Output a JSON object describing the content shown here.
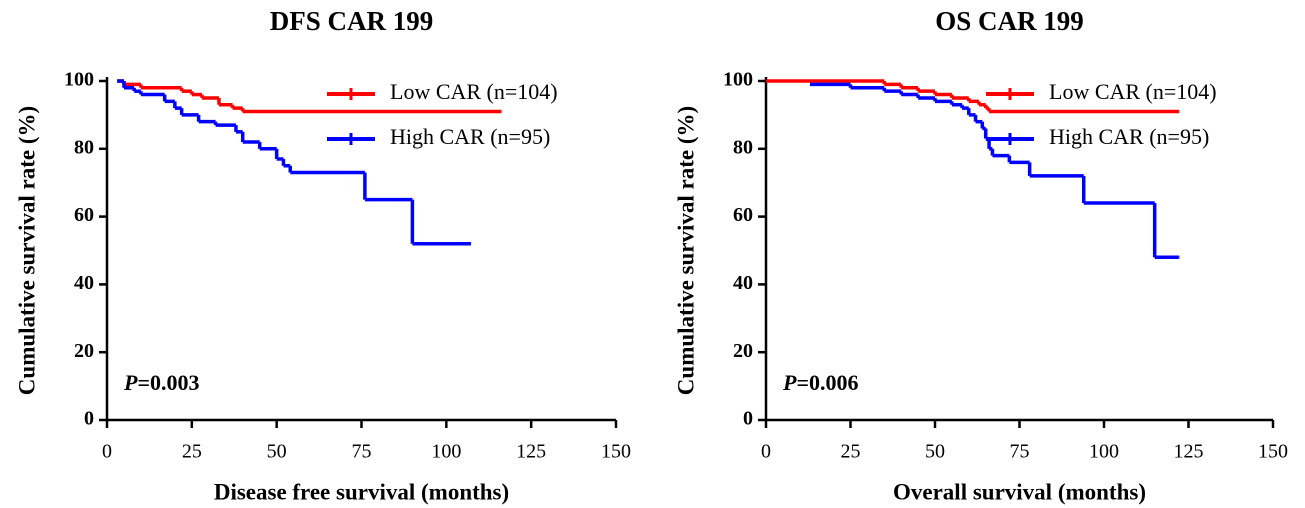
{
  "chart_data": [
    {
      "type": "line",
      "step": true,
      "title": "DFS CAR 199",
      "xlabel": "Disease free survival (months)",
      "ylabel": "Cumulative survival rate (%)",
      "xlim": [
        0,
        150
      ],
      "xticks": [
        0,
        25,
        50,
        75,
        100,
        125,
        150
      ],
      "ylim": [
        0,
        100
      ],
      "yticks": [
        0,
        20,
        40,
        60,
        80,
        100
      ],
      "legend": "upper right",
      "p_label": "P",
      "p_value": "=0.003",
      "series": [
        {
          "name": "Low CAR (n=104)",
          "color": "#ff0000",
          "x": [
            3,
            5,
            10,
            22,
            25,
            28,
            33,
            37,
            40,
            116
          ],
          "values": [
            100,
            99,
            98,
            97,
            96,
            95,
            93,
            92,
            91,
            91
          ]
        },
        {
          "name": "High CAR (n=95)",
          "color": "#0000ff",
          "x": [
            3,
            5,
            8,
            10,
            17,
            20,
            22,
            27,
            32,
            38,
            40,
            45,
            50,
            52,
            54,
            76,
            90,
            107
          ],
          "values": [
            100,
            98,
            97,
            96,
            94,
            92,
            90,
            88,
            87,
            85,
            82,
            80,
            77,
            75,
            73,
            65,
            52,
            52
          ]
        }
      ]
    },
    {
      "type": "line",
      "step": true,
      "title": "OS CAR 199",
      "xlabel": "Overall survival (months)",
      "ylabel": "Cumulative survival rate (%)",
      "xlim": [
        0,
        150
      ],
      "xticks": [
        0,
        25,
        50,
        75,
        100,
        125,
        150
      ],
      "ylim": [
        0,
        100
      ],
      "yticks": [
        0,
        20,
        40,
        60,
        80,
        100
      ],
      "legend": "upper right",
      "p_label": "P",
      "p_value": "=0.006",
      "series": [
        {
          "name": "Low CAR (n=104)",
          "color": "#ff0000",
          "x": [
            0,
            35,
            40,
            45,
            50,
            55,
            60,
            63,
            65,
            66,
            67,
            122
          ],
          "values": [
            100,
            99,
            98,
            97,
            96,
            95,
            94,
            93,
            92,
            91,
            91,
            91
          ]
        },
        {
          "name": "High CAR (n=95)",
          "color": "#0000ff",
          "x": [
            13,
            25,
            35,
            40,
            45,
            50,
            55,
            58,
            60,
            62,
            64,
            65,
            66,
            67,
            72,
            78,
            94,
            115,
            122
          ],
          "values": [
            99,
            98,
            97,
            96,
            95,
            94,
            93,
            92,
            90,
            88,
            86,
            83,
            80,
            78,
            76,
            72,
            64,
            48,
            48
          ]
        }
      ]
    }
  ]
}
